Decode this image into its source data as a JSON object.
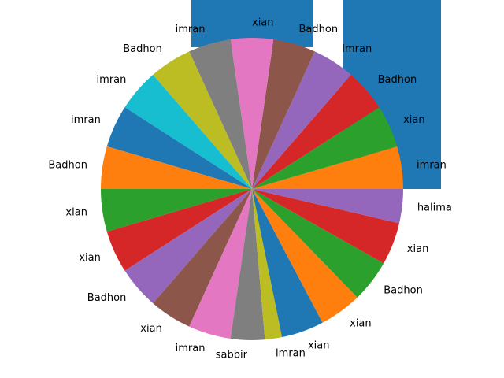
{
  "chart_data": {
    "type": "pie",
    "categories": [
      "imran",
      "xian",
      "Badhon",
      "Imran",
      "Badhon",
      "xian",
      "imran",
      "Badhon",
      "imran",
      "imran",
      "Badhon",
      "xian",
      "xian",
      "Badhon",
      "xian",
      "imran",
      "sabbir",
      "imran",
      "xian",
      "xian",
      "Badhon",
      "xian",
      "halima"
    ],
    "values": [
      5,
      5,
      5,
      5,
      5,
      5,
      5,
      5,
      5,
      5,
      5,
      5,
      5,
      5,
      5,
      5,
      4,
      2,
      5,
      5,
      5,
      5,
      4
    ],
    "colors": [
      "#ff7f0e",
      "#2ca02c",
      "#d62728",
      "#9467bd",
      "#8c564b",
      "#e377c2",
      "#7f7f7f",
      "#bcbd22",
      "#17becf",
      "#1f77b4",
      "#ff7f0e",
      "#2ca02c",
      "#d62728",
      "#9467bd",
      "#8c564b",
      "#e377c2",
      "#7f7f7f",
      "#bcbd22",
      "#1f77b4",
      "#ff7f0e",
      "#2ca02c",
      "#d62728",
      "#9467bd"
    ]
  }
}
